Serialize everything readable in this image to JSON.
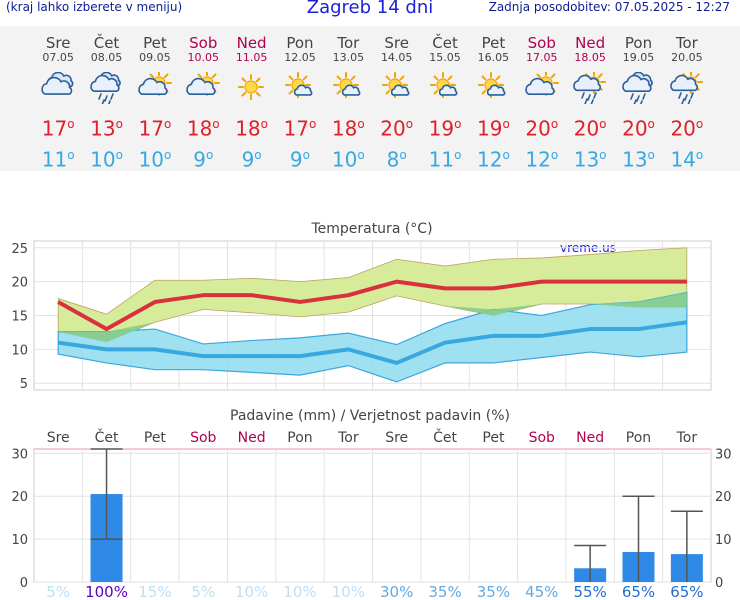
{
  "header": {
    "hint": "(kraj lahko izberete v meniju)",
    "title": "Zagreb 14 dni",
    "updated": "Zadnja posodobitev: 07.05.2025 - 12:27"
  },
  "degree_symbol": "o",
  "days": [
    {
      "name": "Sre",
      "date": "07.05",
      "weekend": false,
      "icon": "cloudy-icon",
      "tmax": "17",
      "tmin": "11"
    },
    {
      "name": "Čet",
      "date": "08.05",
      "weekend": false,
      "icon": "rain-cloud-icon",
      "tmax": "13",
      "tmin": "10"
    },
    {
      "name": "Pet",
      "date": "09.05",
      "weekend": false,
      "icon": "partly-cloudy-icon",
      "tmax": "17",
      "tmin": "10"
    },
    {
      "name": "Sob",
      "date": "10.05",
      "weekend": true,
      "icon": "partly-cloudy-icon",
      "tmax": "18",
      "tmin": "9"
    },
    {
      "name": "Ned",
      "date": "11.05",
      "weekend": true,
      "icon": "sun-icon",
      "tmax": "18",
      "tmin": "9"
    },
    {
      "name": "Pon",
      "date": "12.05",
      "weekend": false,
      "icon": "sun-small-cloud-icon",
      "tmax": "17",
      "tmin": "9"
    },
    {
      "name": "Tor",
      "date": "13.05",
      "weekend": false,
      "icon": "sun-small-cloud-icon",
      "tmax": "18",
      "tmin": "10"
    },
    {
      "name": "Sre",
      "date": "14.05",
      "weekend": false,
      "icon": "sun-small-cloud-icon",
      "tmax": "20",
      "tmin": "8"
    },
    {
      "name": "Čet",
      "date": "15.05",
      "weekend": false,
      "icon": "sun-small-cloud-icon",
      "tmax": "19",
      "tmin": "11"
    },
    {
      "name": "Pet",
      "date": "16.05",
      "weekend": false,
      "icon": "sun-small-cloud-icon",
      "tmax": "19",
      "tmin": "12"
    },
    {
      "name": "Sob",
      "date": "17.05",
      "weekend": true,
      "icon": "partly-cloudy-icon",
      "tmax": "20",
      "tmin": "12"
    },
    {
      "name": "Ned",
      "date": "18.05",
      "weekend": true,
      "icon": "sun-rain-icon",
      "tmax": "20",
      "tmin": "13"
    },
    {
      "name": "Pon",
      "date": "19.05",
      "weekend": false,
      "icon": "rain-cloud-icon",
      "tmax": "20",
      "tmin": "13"
    },
    {
      "name": "Tor",
      "date": "20.05",
      "weekend": false,
      "icon": "sun-rain-icon",
      "tmax": "20",
      "tmin": "14"
    }
  ],
  "chart_data": [
    {
      "type": "line",
      "title": "Temperatura (°C)",
      "watermark": "vreme.us",
      "ylim": [
        4,
        26
      ],
      "yticks": [
        5,
        10,
        15,
        20,
        25
      ],
      "grid": true,
      "colors": {
        "max": "#d9303d",
        "min": "#3aa8e0",
        "max_band": "#d7ec9a",
        "min_band": "#8fdcef",
        "overlap": "#86cc8a"
      },
      "series": [
        {
          "values": [
            17,
            13,
            17,
            18,
            18,
            17,
            18,
            20,
            19,
            19,
            20,
            20,
            20,
            20
          ]
        },
        {
          "values": [
            11,
            10,
            10,
            9,
            9,
            9,
            10,
            8,
            11,
            12,
            12,
            13,
            13,
            14
          ]
        }
      ],
      "bands": [
        {
          "upper": [
            17.5,
            15.2,
            20.2,
            20.2,
            20.5,
            20.0,
            20.6,
            23.3,
            22.3,
            23.3,
            23.5,
            24.0,
            24.6,
            25.0
          ],
          "lower": [
            12.6,
            11.1,
            14.0,
            15.9,
            15.4,
            14.8,
            15.5,
            17.9,
            16.4,
            15.0,
            16.7,
            16.7,
            16.2,
            16.2
          ]
        },
        {
          "upper": [
            12.6,
            12.6,
            13.0,
            10.8,
            11.3,
            11.7,
            12.4,
            10.7,
            13.8,
            15.9,
            15.0,
            16.6,
            17.0,
            18.4
          ],
          "lower": [
            9.3,
            8.0,
            7.0,
            7.0,
            6.6,
            6.2,
            7.6,
            5.2,
            8.0,
            8.0,
            8.8,
            9.6,
            8.9,
            9.6
          ]
        }
      ]
    },
    {
      "type": "bar",
      "title": "Padavine (mm) / Verjetnost padavin (%)",
      "categories": [
        "Sre",
        "Čet",
        "Pet",
        "Sob",
        "Ned",
        "Pon",
        "Tor",
        "Sre",
        "Čet",
        "Pet",
        "Sob",
        "Ned",
        "Pon",
        "Tor"
      ],
      "weekend": [
        false,
        false,
        false,
        true,
        true,
        false,
        false,
        false,
        false,
        false,
        true,
        true,
        false,
        false
      ],
      "ylim": [
        0,
        31
      ],
      "yticks": [
        0,
        10,
        20,
        30
      ],
      "bar_color": "#2f89e6",
      "values": [
        0,
        20.5,
        0,
        0,
        0,
        0,
        0,
        0,
        0,
        0,
        0,
        3.2,
        7.0,
        6.5
      ],
      "error_high": [
        null,
        31.0,
        null,
        null,
        null,
        null,
        null,
        null,
        null,
        null,
        null,
        8.5,
        20.0,
        16.5
      ],
      "error_low": [
        null,
        10.0,
        null,
        null,
        null,
        null,
        null,
        null,
        null,
        null,
        null,
        0,
        0,
        0
      ],
      "probability": [
        "5%",
        "100%",
        "15%",
        "5%",
        "10%",
        "10%",
        "10%",
        "30%",
        "35%",
        "35%",
        "45%",
        "55%",
        "65%",
        "65%"
      ],
      "probability_colors": [
        "#bfe0f0",
        "#5a00cc",
        "#bfe0f0",
        "#bfe0f0",
        "#bfe0f0",
        "#bfe0f0",
        "#bfe0f0",
        "#66a9e0",
        "#66a9e0",
        "#66a9e0",
        "#66a9e0",
        "#1f6fd0",
        "#1f6fd0",
        "#1f6fd0"
      ]
    }
  ]
}
